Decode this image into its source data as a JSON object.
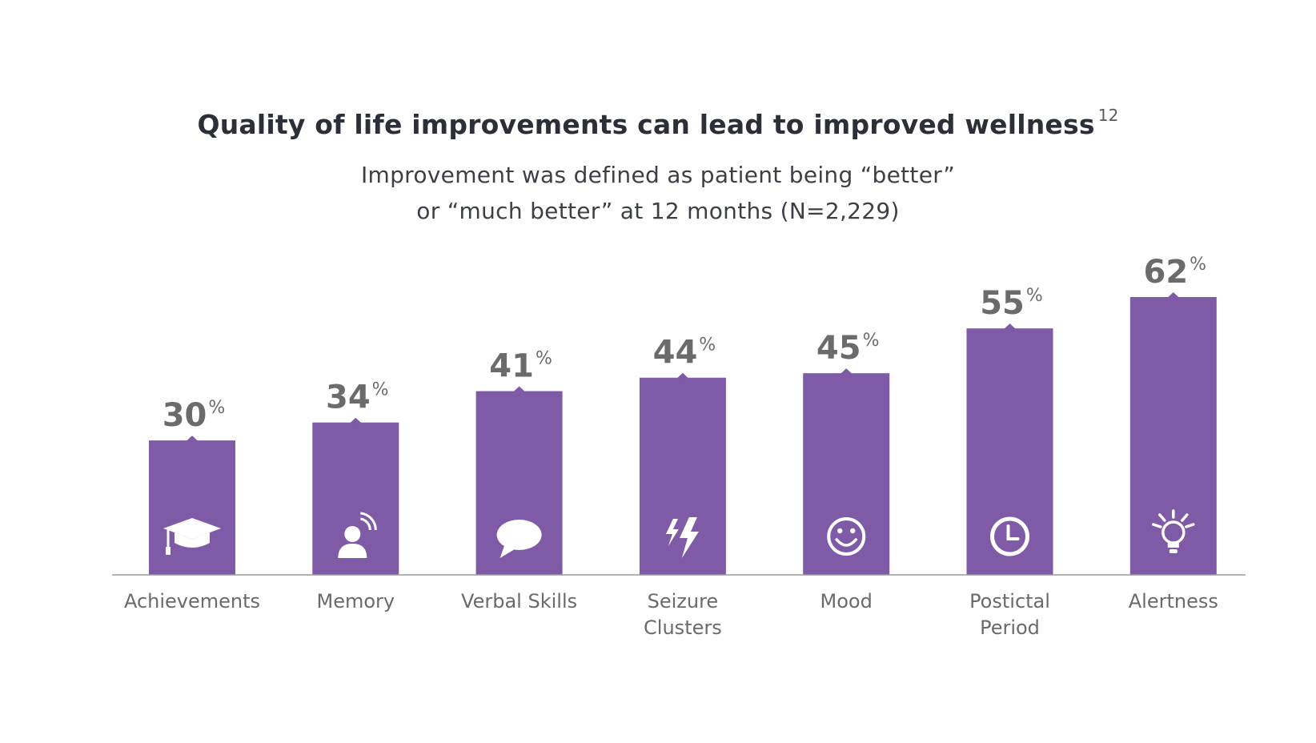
{
  "header": {
    "title": "Quality of life improvements can lead to improved wellness",
    "title_superscript": "12",
    "subtitle_line1": "Improvement was defined as patient being “better”",
    "subtitle_line2": "or “much better” at 12 months (N=2,229)"
  },
  "chart_data": {
    "type": "bar",
    "title": "Quality of life improvements can lead to improved wellness",
    "categories": [
      [
        "Achievements"
      ],
      [
        "Memory"
      ],
      [
        "Verbal Skills"
      ],
      [
        "Seizure",
        "Clusters"
      ],
      [
        "Mood"
      ],
      [
        "Postictal",
        "Period"
      ],
      [
        "Alertness"
      ]
    ],
    "values": [
      30,
      34,
      41,
      44,
      45,
      55,
      62
    ],
    "value_suffix": "%",
    "icons": [
      "graduation-cap-icon",
      "person-signal-icon",
      "speech-bubble-icon",
      "lightning-bolts-icon",
      "smiley-face-icon",
      "clock-icon",
      "lightbulb-icon"
    ],
    "xlabel": "",
    "ylabel": "",
    "ylim": [
      0,
      70
    ],
    "grid": false,
    "legend": "none",
    "bar_color": "#7f5aa6",
    "label_color": "#6b6b6b"
  }
}
